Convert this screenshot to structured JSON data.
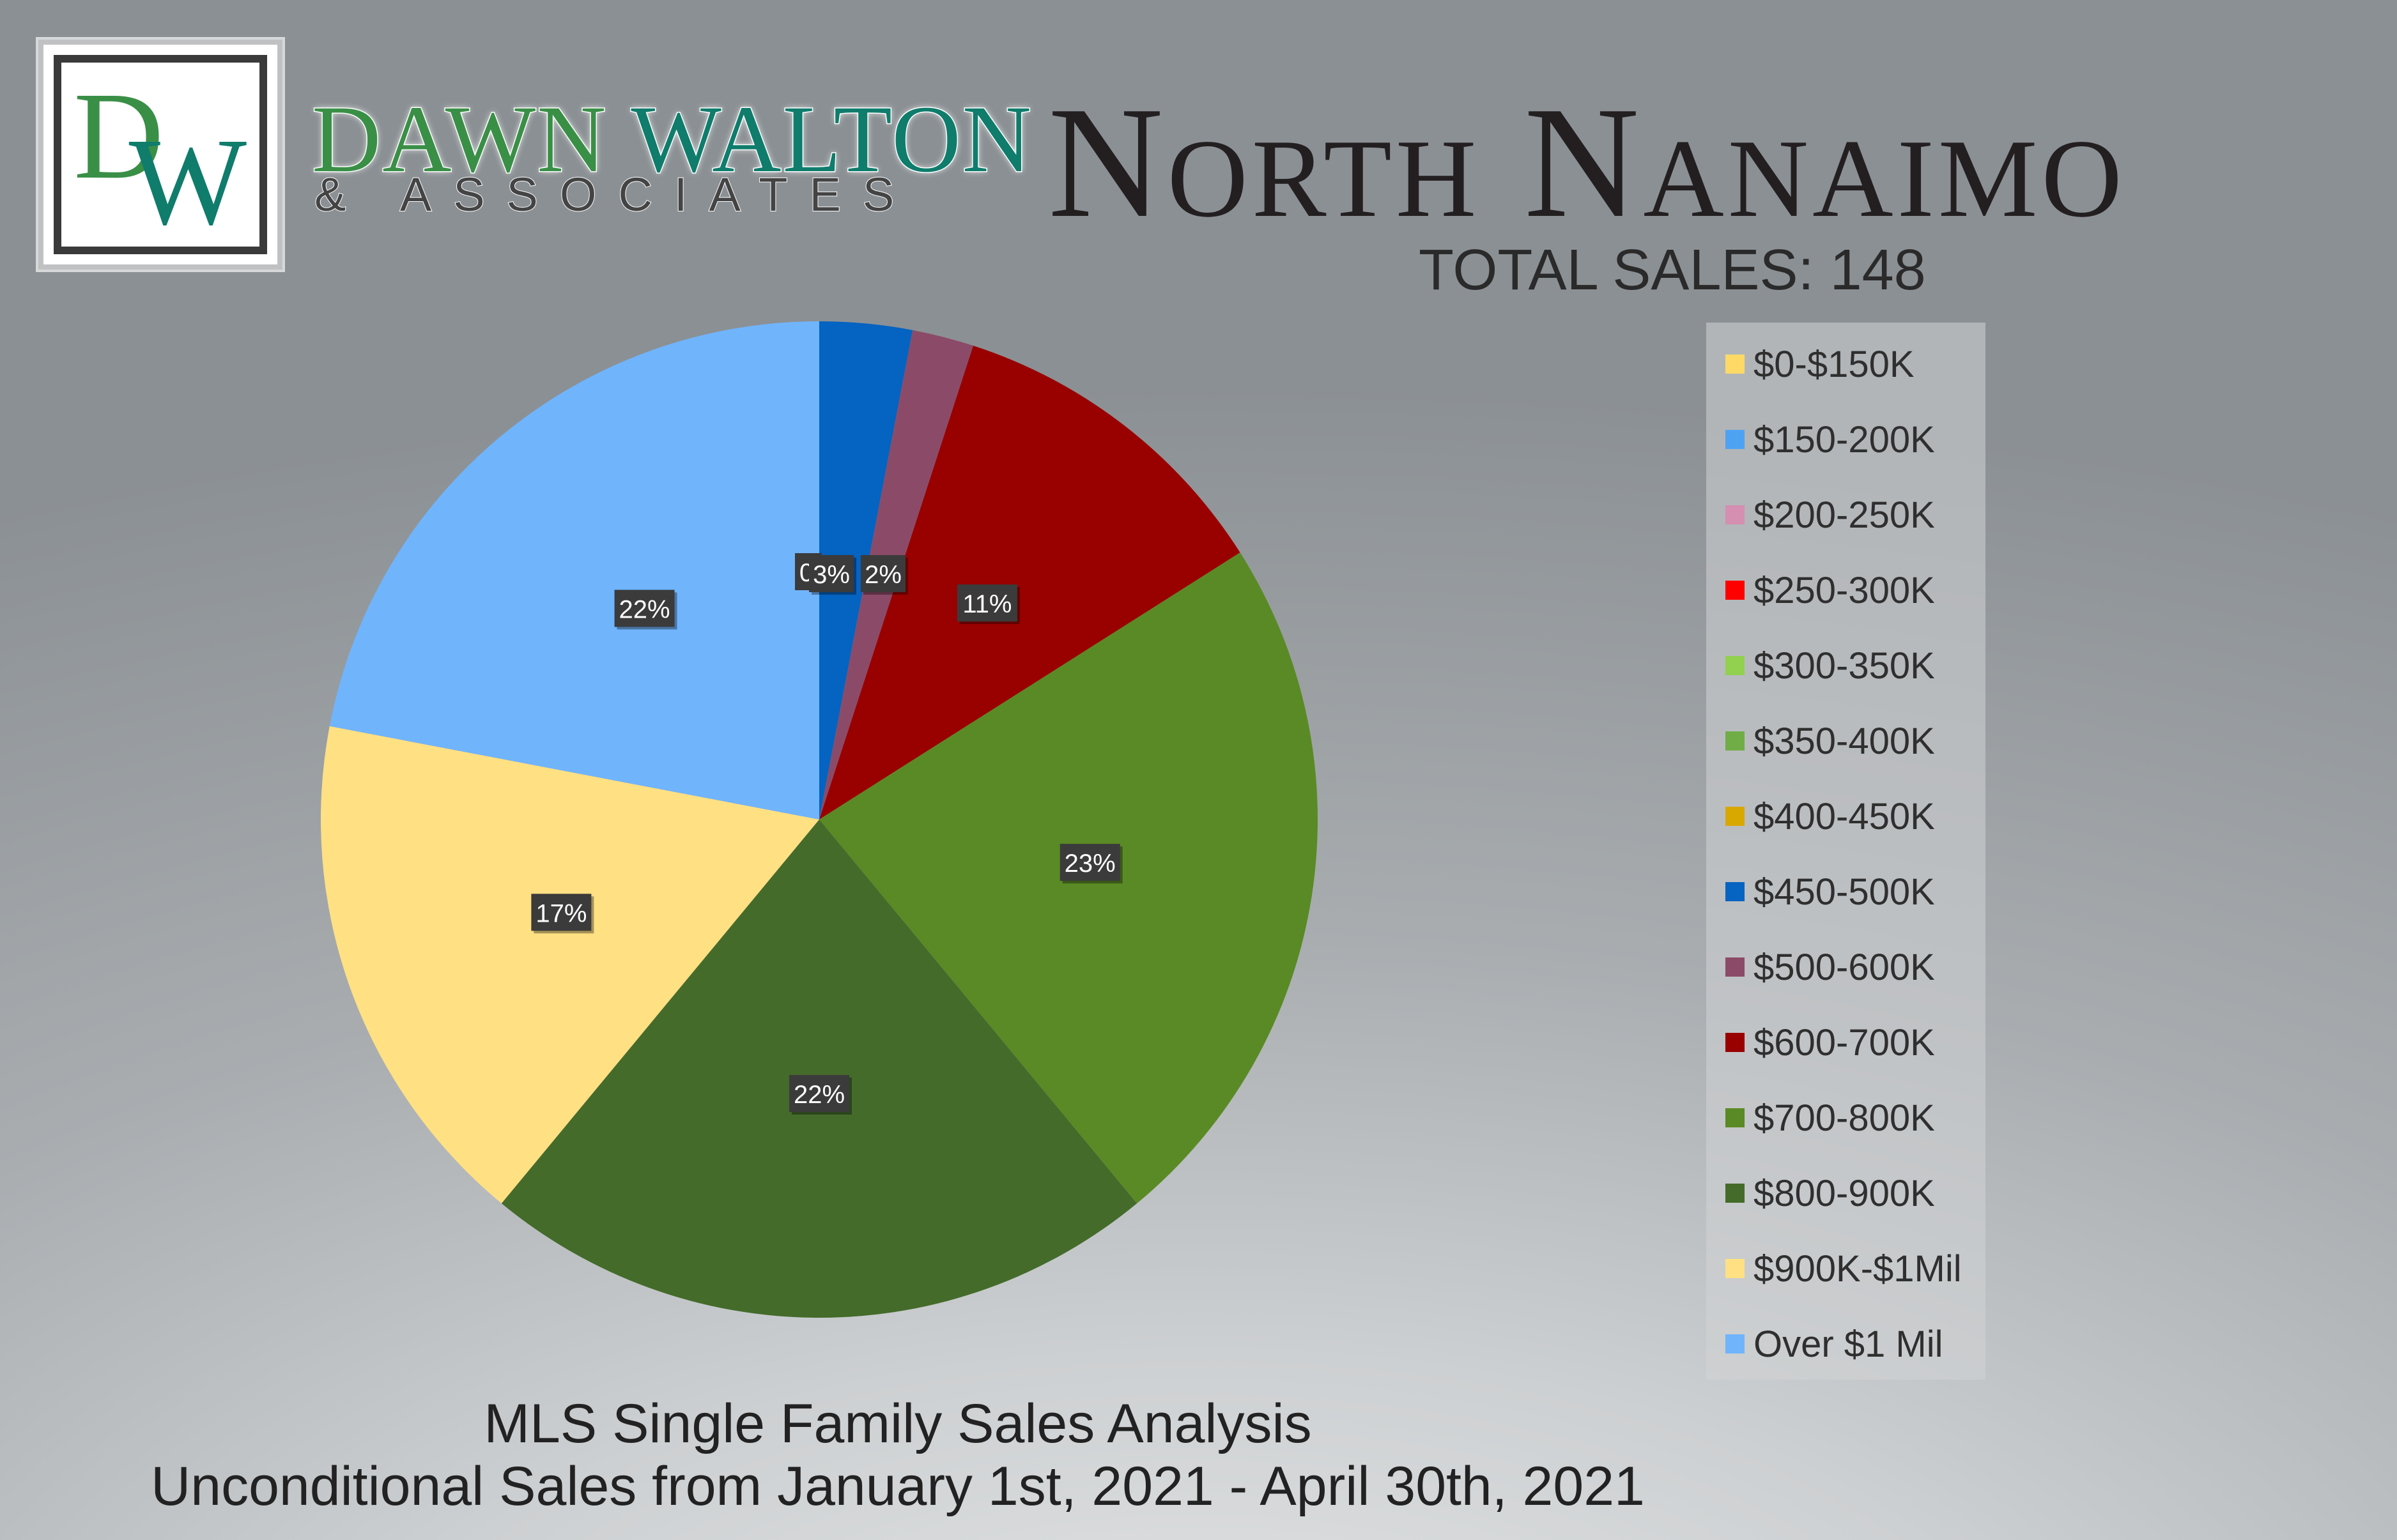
{
  "brand": {
    "name_part1": "DAWN ",
    "name_part2": "WALTON",
    "sub": "& ASSOCIATES",
    "logo_text": "DW"
  },
  "header": {
    "title": "North Nanaimo",
    "subtitle": "TOTAL SALES: 148"
  },
  "footer": {
    "line1": "MLS Single Family Sales Analysis",
    "line2": "Unconditional Sales from January 1st, 2021 - April 30th, 2021"
  },
  "colors": {
    "green": "#3a8f47",
    "teal": "#0f7c6c"
  },
  "chart_data": {
    "type": "pie",
    "title": "",
    "categories": [
      "$0-$150K",
      "$150-200K",
      "$200-250K",
      "$250-300K",
      "$300-350K",
      "$350-400K",
      "$400-450K",
      "$450-500K",
      "$500-600K",
      "$600-700K",
      "$700-800K",
      "$800-900K",
      "$900K-$1Mil",
      "Over $1 Mil"
    ],
    "values": [
      0,
      0,
      0,
      0,
      0,
      0,
      0,
      3,
      2,
      11,
      23,
      22,
      17,
      22
    ],
    "data_labels": [
      "",
      "",
      "",
      "",
      "",
      "",
      "",
      "3%",
      "2%",
      "11%",
      "23%",
      "22%",
      "17%",
      "22%"
    ],
    "hidden_zero_labels": [
      "0",
      "0"
    ],
    "slice_colors": [
      "#ffd966",
      "#4da3f2",
      "#d48fb1",
      "#ff0000",
      "#92d050",
      "#70ad47",
      "#d9a800",
      "#0563c1",
      "#8b4b68",
      "#990000",
      "#5a8a25",
      "#446b2a",
      "#ffe083",
      "#70b4fc"
    ],
    "legend_placement": "right",
    "start": "top, clockwise"
  }
}
